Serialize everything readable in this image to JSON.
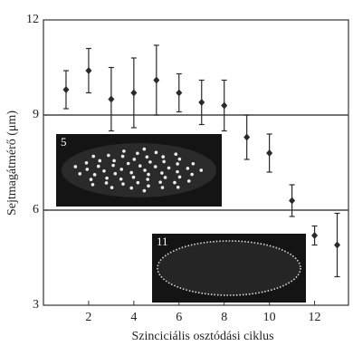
{
  "chart_data": {
    "type": "errorbar",
    "y_label": "Sejtmagátmérő (μm)",
    "x_label": "Szinciciális osztódási ciklus",
    "x": [
      1,
      2,
      3,
      4,
      5,
      6,
      7,
      8,
      9,
      10,
      11,
      12,
      13
    ],
    "series": [
      {
        "color": "#2a2a2a",
        "values": [
          9.8,
          10.4,
          9.5,
          9.7,
          10.1,
          9.7,
          9.4,
          9.3,
          8.3,
          7.8,
          6.3,
          5.2,
          4.9
        ],
        "errors": [
          0.6,
          0.7,
          1.0,
          1.1,
          1.1,
          0.6,
          0.7,
          0.8,
          0.7,
          0.6,
          0.5,
          0.3,
          1.0
        ]
      }
    ],
    "xlim": [
      0,
      13.5
    ],
    "ylim": [
      3,
      12
    ],
    "xticks": [
      2,
      4,
      6,
      8,
      10,
      12
    ],
    "yticks": [
      3,
      6,
      9,
      12
    ],
    "hlines": [
      6,
      9
    ],
    "insets": [
      {
        "label": "5"
      },
      {
        "label": "11"
      }
    ]
  }
}
